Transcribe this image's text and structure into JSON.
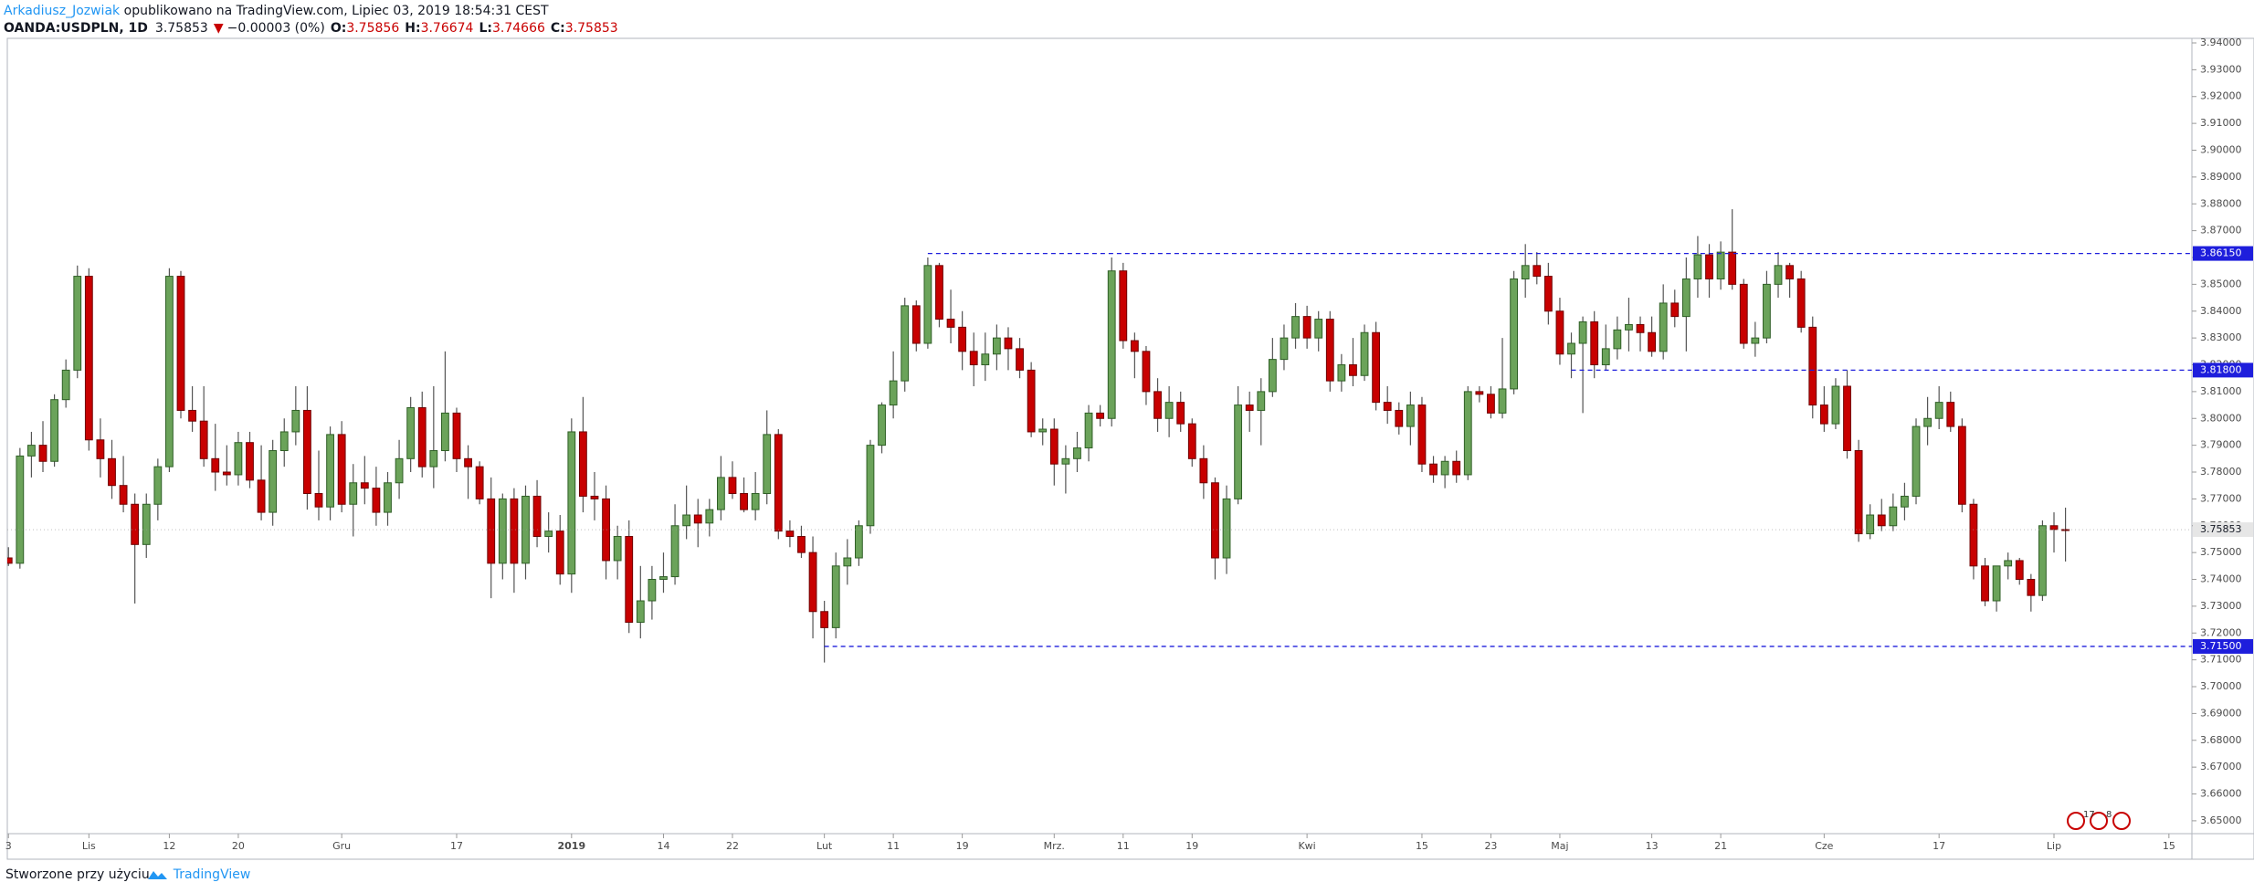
{
  "header": {
    "author": "Arkadiusz_Jozwiak",
    "published": "opublikowano na TradingView.com, Lipiec 03, 2019 18:54:31 CEST",
    "symbol": "OANDA:USDPLN, 1D",
    "arrow": "▼",
    "change": "−0.00003 (0%)",
    "o_label": "O:",
    "h_label": "H:",
    "l_label": "L:",
    "c_label": "C:"
  },
  "footer": {
    "made_with": "Stworzone przy użyciu",
    "brand": "TradingView"
  },
  "events": [
    "17",
    "8"
  ],
  "chart_data": {
    "type": "candlestick",
    "up_color": "#6ba35a",
    "up_border": "#2f5f26",
    "down_color": "#c80000",
    "down_border": "#6e0000",
    "wick_color": "#555555",
    "level_color": "#1e1edc",
    "ylim": [
      3.6452,
      3.9417
    ],
    "yticks": [
      {
        "value": 3.65,
        "label": "3.65000"
      },
      {
        "value": 3.66,
        "label": "3.66000"
      },
      {
        "value": 3.67,
        "label": "3.67000"
      },
      {
        "value": 3.68,
        "label": "3.68000"
      },
      {
        "value": 3.69,
        "label": "3.69000"
      },
      {
        "value": 3.7,
        "label": "3.70000"
      },
      {
        "value": 3.71,
        "label": "3.71000"
      },
      {
        "value": 3.72,
        "label": "3.72000"
      },
      {
        "value": 3.73,
        "label": "3.73000"
      },
      {
        "value": 3.74,
        "label": "3.74000"
      },
      {
        "value": 3.75,
        "label": "3.75000"
      },
      {
        "value": 3.76,
        "label": "3.76000"
      },
      {
        "value": 3.77,
        "label": "3.77000"
      },
      {
        "value": 3.78,
        "label": "3.78000"
      },
      {
        "value": 3.79,
        "label": "3.79000"
      },
      {
        "value": 3.8,
        "label": "3.80000"
      },
      {
        "value": 3.81,
        "label": "3.81000"
      },
      {
        "value": 3.82,
        "label": "3.82000"
      },
      {
        "value": 3.83,
        "label": "3.83000"
      },
      {
        "value": 3.84,
        "label": "3.84000"
      },
      {
        "value": 3.85,
        "label": "3.85000"
      },
      {
        "value": 3.86,
        "label": "3.86000"
      },
      {
        "value": 3.87,
        "label": "3.87000"
      },
      {
        "value": 3.88,
        "label": "3.88000"
      },
      {
        "value": 3.89,
        "label": "3.89000"
      },
      {
        "value": 3.9,
        "label": "3.90000"
      },
      {
        "value": 3.91,
        "label": "3.91000"
      },
      {
        "value": 3.92,
        "label": "3.92000"
      },
      {
        "value": 3.93,
        "label": "3.93000"
      },
      {
        "value": 3.94,
        "label": "3.94000"
      }
    ],
    "xlim": [
      -0.1,
      190
    ],
    "xticks": [
      {
        "value": 0,
        "label": "3"
      },
      {
        "value": 7,
        "label": "Lis"
      },
      {
        "value": 14,
        "label": "12"
      },
      {
        "value": 20,
        "label": "20"
      },
      {
        "value": 29,
        "label": "Gru"
      },
      {
        "value": 39,
        "label": "17"
      },
      {
        "value": 49,
        "label": "2019",
        "bold": true
      },
      {
        "value": 57,
        "label": "14"
      },
      {
        "value": 63,
        "label": "22"
      },
      {
        "value": 71,
        "label": "Lut"
      },
      {
        "value": 77,
        "label": "11"
      },
      {
        "value": 83,
        "label": "19"
      },
      {
        "value": 91,
        "label": "Mrz."
      },
      {
        "value": 97,
        "label": "11"
      },
      {
        "value": 103,
        "label": "19"
      },
      {
        "value": 113,
        "label": "Kwi"
      },
      {
        "value": 123,
        "label": "15"
      },
      {
        "value": 129,
        "label": "23"
      },
      {
        "value": 135,
        "label": "Maj"
      },
      {
        "value": 143,
        "label": "13"
      },
      {
        "value": 149,
        "label": "21"
      },
      {
        "value": 158,
        "label": "Cze"
      },
      {
        "value": 168,
        "label": "17"
      },
      {
        "value": 178,
        "label": "Lip"
      },
      {
        "value": 188,
        "label": "15"
      }
    ],
    "levels": [
      {
        "value": 3.8615,
        "label": "3.86150",
        "x_start": 80
      },
      {
        "value": 3.818,
        "label": "3.81800",
        "x_start": 136
      },
      {
        "value": 3.715,
        "label": "3.71500",
        "x_start": 71
      }
    ],
    "candles": [
      [
        3.748,
        3.752,
        3.745,
        3.746
      ],
      [
        3.746,
        3.789,
        3.744,
        3.786
      ],
      [
        3.786,
        3.795,
        3.778,
        3.79
      ],
      [
        3.79,
        3.799,
        3.78,
        3.784
      ],
      [
        3.784,
        3.809,
        3.782,
        3.807
      ],
      [
        3.807,
        3.822,
        3.804,
        3.818
      ],
      [
        3.818,
        3.857,
        3.815,
        3.853
      ],
      [
        3.853,
        3.856,
        3.788,
        3.792
      ],
      [
        3.792,
        3.8,
        3.778,
        3.785
      ],
      [
        3.785,
        3.792,
        3.77,
        3.775
      ],
      [
        3.775,
        3.786,
        3.765,
        3.768
      ],
      [
        3.768,
        3.772,
        3.731,
        3.753
      ],
      [
        3.753,
        3.772,
        3.748,
        3.768
      ],
      [
        3.768,
        3.785,
        3.762,
        3.782
      ],
      [
        3.782,
        3.856,
        3.78,
        3.853
      ],
      [
        3.853,
        3.855,
        3.8,
        3.803
      ],
      [
        3.803,
        3.812,
        3.795,
        3.799
      ],
      [
        3.799,
        3.812,
        3.782,
        3.785
      ],
      [
        3.785,
        3.798,
        3.773,
        3.78
      ],
      [
        3.78,
        3.79,
        3.775,
        3.779
      ],
      [
        3.779,
        3.795,
        3.775,
        3.791
      ],
      [
        3.791,
        3.795,
        3.774,
        3.777
      ],
      [
        3.777,
        3.79,
        3.762,
        3.765
      ],
      [
        3.765,
        3.792,
        3.76,
        3.788
      ],
      [
        3.788,
        3.8,
        3.782,
        3.795
      ],
      [
        3.795,
        3.812,
        3.79,
        3.803
      ],
      [
        3.803,
        3.812,
        3.766,
        3.772
      ],
      [
        3.772,
        3.788,
        3.762,
        3.767
      ],
      [
        3.767,
        3.797,
        3.762,
        3.794
      ],
      [
        3.794,
        3.799,
        3.765,
        3.768
      ],
      [
        3.768,
        3.783,
        3.756,
        3.776
      ],
      [
        3.776,
        3.786,
        3.768,
        3.774
      ],
      [
        3.774,
        3.782,
        3.76,
        3.765
      ],
      [
        3.765,
        3.78,
        3.76,
        3.776
      ],
      [
        3.776,
        3.792,
        3.77,
        3.785
      ],
      [
        3.785,
        3.808,
        3.78,
        3.804
      ],
      [
        3.804,
        3.81,
        3.778,
        3.782
      ],
      [
        3.782,
        3.812,
        3.774,
        3.788
      ],
      [
        3.788,
        3.825,
        3.784,
        3.802
      ],
      [
        3.802,
        3.804,
        3.78,
        3.785
      ],
      [
        3.785,
        3.79,
        3.77,
        3.782
      ],
      [
        3.782,
        3.784,
        3.768,
        3.77
      ],
      [
        3.77,
        3.778,
        3.733,
        3.746
      ],
      [
        3.746,
        3.772,
        3.74,
        3.77
      ],
      [
        3.77,
        3.774,
        3.735,
        3.746
      ],
      [
        3.746,
        3.775,
        3.74,
        3.771
      ],
      [
        3.771,
        3.777,
        3.752,
        3.756
      ],
      [
        3.756,
        3.765,
        3.75,
        3.758
      ],
      [
        3.758,
        3.764,
        3.738,
        3.742
      ],
      [
        3.742,
        3.8,
        3.735,
        3.795
      ],
      [
        3.795,
        3.808,
        3.765,
        3.771
      ],
      [
        3.771,
        3.78,
        3.762,
        3.77
      ],
      [
        3.77,
        3.775,
        3.74,
        3.747
      ],
      [
        3.747,
        3.76,
        3.74,
        3.756
      ],
      [
        3.756,
        3.762,
        3.72,
        3.724
      ],
      [
        3.724,
        3.745,
        3.718,
        3.732
      ],
      [
        3.732,
        3.745,
        3.725,
        3.74
      ],
      [
        3.74,
        3.75,
        3.735,
        3.741
      ],
      [
        3.741,
        3.768,
        3.738,
        3.76
      ],
      [
        3.76,
        3.775,
        3.755,
        3.764
      ],
      [
        3.764,
        3.77,
        3.752,
        3.761
      ],
      [
        3.761,
        3.77,
        3.756,
        3.766
      ],
      [
        3.766,
        3.786,
        3.762,
        3.778
      ],
      [
        3.778,
        3.784,
        3.77,
        3.772
      ],
      [
        3.772,
        3.778,
        3.765,
        3.766
      ],
      [
        3.766,
        3.78,
        3.762,
        3.772
      ],
      [
        3.772,
        3.803,
        3.768,
        3.794
      ],
      [
        3.794,
        3.796,
        3.755,
        3.758
      ],
      [
        3.758,
        3.762,
        3.752,
        3.756
      ],
      [
        3.756,
        3.76,
        3.748,
        3.75
      ],
      [
        3.75,
        3.756,
        3.718,
        3.728
      ],
      [
        3.728,
        3.732,
        3.709,
        3.722
      ],
      [
        3.722,
        3.75,
        3.718,
        3.745
      ],
      [
        3.745,
        3.755,
        3.738,
        3.748
      ],
      [
        3.748,
        3.762,
        3.745,
        3.76
      ],
      [
        3.76,
        3.792,
        3.757,
        3.79
      ],
      [
        3.79,
        3.806,
        3.787,
        3.805
      ],
      [
        3.805,
        3.825,
        3.8,
        3.814
      ],
      [
        3.814,
        3.845,
        3.81,
        3.842
      ],
      [
        3.842,
        3.844,
        3.825,
        3.828
      ],
      [
        3.828,
        3.86,
        3.826,
        3.857
      ],
      [
        3.857,
        3.858,
        3.834,
        3.837
      ],
      [
        3.837,
        3.848,
        3.828,
        3.834
      ],
      [
        3.834,
        3.84,
        3.818,
        3.825
      ],
      [
        3.825,
        3.832,
        3.812,
        3.82
      ],
      [
        3.82,
        3.832,
        3.814,
        3.824
      ],
      [
        3.824,
        3.835,
        3.818,
        3.83
      ],
      [
        3.83,
        3.834,
        3.818,
        3.826
      ],
      [
        3.826,
        3.83,
        3.815,
        3.818
      ],
      [
        3.818,
        3.821,
        3.793,
        3.795
      ],
      [
        3.795,
        3.8,
        3.79,
        3.796
      ],
      [
        3.796,
        3.8,
        3.775,
        3.783
      ],
      [
        3.783,
        3.79,
        3.772,
        3.785
      ],
      [
        3.785,
        3.795,
        3.78,
        3.789
      ],
      [
        3.789,
        3.805,
        3.784,
        3.802
      ],
      [
        3.802,
        3.805,
        3.797,
        3.8
      ],
      [
        3.8,
        3.86,
        3.797,
        3.855
      ],
      [
        3.855,
        3.858,
        3.826,
        3.829
      ],
      [
        3.829,
        3.832,
        3.815,
        3.825
      ],
      [
        3.825,
        3.827,
        3.805,
        3.81
      ],
      [
        3.81,
        3.815,
        3.795,
        3.8
      ],
      [
        3.8,
        3.812,
        3.793,
        3.806
      ],
      [
        3.806,
        3.81,
        3.795,
        3.798
      ],
      [
        3.798,
        3.8,
        3.782,
        3.785
      ],
      [
        3.785,
        3.79,
        3.77,
        3.776
      ],
      [
        3.776,
        3.778,
        3.74,
        3.748
      ],
      [
        3.748,
        3.775,
        3.742,
        3.77
      ],
      [
        3.77,
        3.812,
        3.768,
        3.805
      ],
      [
        3.805,
        3.81,
        3.795,
        3.803
      ],
      [
        3.803,
        3.815,
        3.79,
        3.81
      ],
      [
        3.81,
        3.83,
        3.808,
        3.822
      ],
      [
        3.822,
        3.835,
        3.818,
        3.83
      ],
      [
        3.83,
        3.843,
        3.826,
        3.838
      ],
      [
        3.838,
        3.842,
        3.826,
        3.83
      ],
      [
        3.83,
        3.84,
        3.825,
        3.837
      ],
      [
        3.837,
        3.84,
        3.81,
        3.814
      ],
      [
        3.814,
        3.824,
        3.81,
        3.82
      ],
      [
        3.82,
        3.83,
        3.812,
        3.816
      ],
      [
        3.816,
        3.835,
        3.814,
        3.832
      ],
      [
        3.832,
        3.836,
        3.803,
        3.806
      ],
      [
        3.806,
        3.812,
        3.798,
        3.803
      ],
      [
        3.803,
        3.806,
        3.794,
        3.797
      ],
      [
        3.797,
        3.81,
        3.79,
        3.805
      ],
      [
        3.805,
        3.808,
        3.78,
        3.783
      ],
      [
        3.783,
        3.786,
        3.776,
        3.779
      ],
      [
        3.779,
        3.786,
        3.774,
        3.784
      ],
      [
        3.784,
        3.788,
        3.776,
        3.779
      ],
      [
        3.779,
        3.812,
        3.777,
        3.81
      ],
      [
        3.81,
        3.812,
        3.806,
        3.809
      ],
      [
        3.809,
        3.812,
        3.8,
        3.802
      ],
      [
        3.802,
        3.83,
        3.8,
        3.811
      ],
      [
        3.811,
        3.855,
        3.809,
        3.852
      ],
      [
        3.852,
        3.865,
        3.845,
        3.857
      ],
      [
        3.857,
        3.862,
        3.85,
        3.853
      ],
      [
        3.853,
        3.858,
        3.835,
        3.84
      ],
      [
        3.84,
        3.845,
        3.82,
        3.824
      ],
      [
        3.824,
        3.832,
        3.815,
        3.828
      ],
      [
        3.828,
        3.838,
        3.802,
        3.836
      ],
      [
        3.836,
        3.84,
        3.815,
        3.82
      ],
      [
        3.82,
        3.835,
        3.818,
        3.826
      ],
      [
        3.826,
        3.838,
        3.822,
        3.833
      ],
      [
        3.833,
        3.845,
        3.825,
        3.835
      ],
      [
        3.835,
        3.838,
        3.825,
        3.832
      ],
      [
        3.832,
        3.838,
        3.823,
        3.825
      ],
      [
        3.825,
        3.85,
        3.822,
        3.843
      ],
      [
        3.843,
        3.848,
        3.834,
        3.838
      ],
      [
        3.838,
        3.86,
        3.825,
        3.852
      ],
      [
        3.852,
        3.868,
        3.845,
        3.861
      ],
      [
        3.861,
        3.865,
        3.845,
        3.852
      ],
      [
        3.852,
        3.866,
        3.848,
        3.862
      ],
      [
        3.862,
        3.878,
        3.848,
        3.85
      ],
      [
        3.85,
        3.852,
        3.826,
        3.828
      ],
      [
        3.828,
        3.836,
        3.823,
        3.83
      ],
      [
        3.83,
        3.855,
        3.828,
        3.85
      ],
      [
        3.85,
        3.862,
        3.845,
        3.857
      ],
      [
        3.857,
        3.858,
        3.845,
        3.852
      ],
      [
        3.852,
        3.855,
        3.832,
        3.834
      ],
      [
        3.834,
        3.838,
        3.8,
        3.805
      ],
      [
        3.805,
        3.812,
        3.795,
        3.798
      ],
      [
        3.798,
        3.815,
        3.796,
        3.812
      ],
      [
        3.812,
        3.818,
        3.785,
        3.788
      ],
      [
        3.788,
        3.792,
        3.754,
        3.757
      ],
      [
        3.757,
        3.768,
        3.755,
        3.764
      ],
      [
        3.764,
        3.77,
        3.758,
        3.76
      ],
      [
        3.76,
        3.772,
        3.758,
        3.767
      ],
      [
        3.767,
        3.776,
        3.762,
        3.771
      ],
      [
        3.771,
        3.8,
        3.768,
        3.797
      ],
      [
        3.797,
        3.808,
        3.79,
        3.8
      ],
      [
        3.8,
        3.812,
        3.796,
        3.806
      ],
      [
        3.806,
        3.81,
        3.795,
        3.797
      ],
      [
        3.797,
        3.8,
        3.765,
        3.768
      ],
      [
        3.768,
        3.77,
        3.74,
        3.745
      ],
      [
        3.745,
        3.748,
        3.73,
        3.732
      ],
      [
        3.732,
        3.745,
        3.728,
        3.745
      ],
      [
        3.745,
        3.75,
        3.74,
        3.747
      ],
      [
        3.747,
        3.748,
        3.738,
        3.74
      ],
      [
        3.74,
        3.742,
        3.728,
        3.734
      ],
      [
        3.734,
        3.762,
        3.732,
        3.76
      ],
      [
        3.76,
        3.765,
        3.75,
        3.7586
      ],
      [
        3.75856,
        3.76674,
        3.74666,
        3.75853
      ]
    ]
  }
}
